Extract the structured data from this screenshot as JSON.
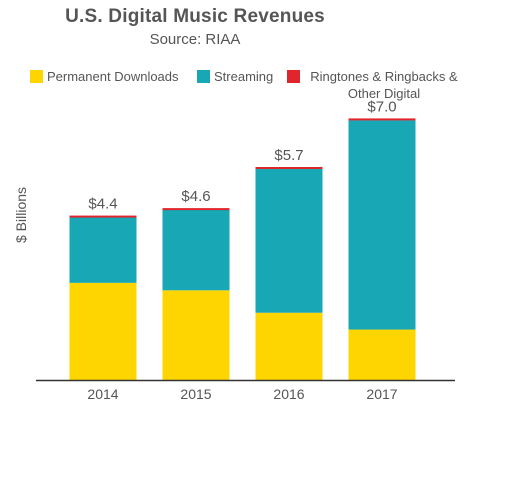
{
  "header": {
    "title": "U.S. Digital Music Revenues",
    "subtitle": "Source: RIAA"
  },
  "chart_data": {
    "type": "bar",
    "stacked": true,
    "title": "U.S. Digital Music Revenues",
    "subtitle": "Source: RIAA",
    "xlabel": "",
    "ylabel": "$ Billions",
    "ylim": [
      0,
      7.6
    ],
    "categories": [
      "2014",
      "2015",
      "2016",
      "2017"
    ],
    "series": [
      {
        "name": "Permanent Downloads",
        "color": "#ffd500",
        "values": [
          2.6,
          2.4,
          1.8,
          1.35
        ]
      },
      {
        "name": "Streaming",
        "color": "#17a7b5",
        "values": [
          1.75,
          2.15,
          3.85,
          5.6
        ]
      },
      {
        "name": "Ringtones & Ringbacks & Other Digital",
        "color": "#e1252c",
        "values": [
          0.05,
          0.05,
          0.05,
          0.05
        ]
      }
    ],
    "totals": [
      "$4.4",
      "$4.6",
      "$5.7",
      "$7.0"
    ],
    "legend_position": "top",
    "grid": false
  }
}
